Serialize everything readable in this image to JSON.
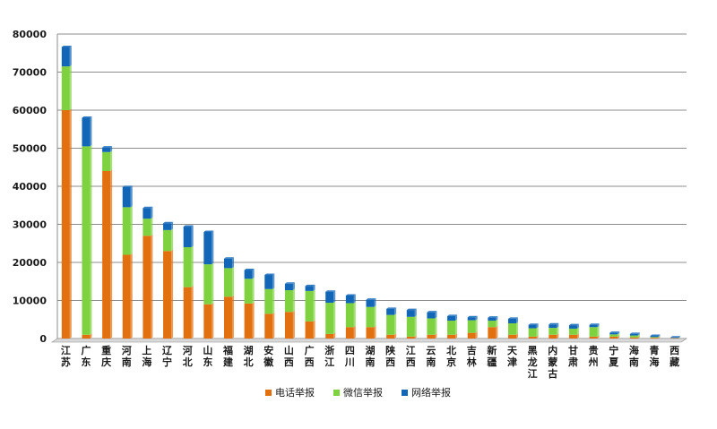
{
  "chart_data": {
    "type": "bar",
    "stacked": true,
    "title": "",
    "xlabel": "",
    "ylabel": "",
    "ylim": [
      0,
      80000
    ],
    "yticks": [
      0,
      10000,
      20000,
      30000,
      40000,
      50000,
      60000,
      70000,
      80000
    ],
    "grid": true,
    "legend_position": "bottom",
    "categories": [
      "江苏",
      "广东",
      "重庆",
      "河南",
      "上海",
      "辽宁",
      "河北",
      "山东",
      "福建",
      "湖北",
      "安徽",
      "山西",
      "广西",
      "浙江",
      "四川",
      "湖南",
      "陕西",
      "江西",
      "云南",
      "北京",
      "吉林",
      "新疆",
      "天津",
      "黑龙江",
      "内蒙古",
      "甘肃",
      "贵州",
      "宁夏",
      "海南",
      "青海",
      "西藏"
    ],
    "series": [
      {
        "name": "电话举报",
        "color": "#E3700F",
        "values": [
          60000,
          1000,
          44000,
          22000,
          27000,
          23000,
          13500,
          9000,
          11000,
          9200,
          6500,
          7000,
          4500,
          1200,
          3000,
          3000,
          1000,
          500,
          1000,
          1000,
          1500,
          3000,
          1000,
          500,
          1000,
          1000,
          500,
          500,
          300,
          200,
          100
        ]
      },
      {
        "name": "微信举报",
        "color": "#7FD23F",
        "values": [
          11500,
          49500,
          5000,
          12500,
          4500,
          5500,
          10500,
          10500,
          7500,
          6500,
          6500,
          5700,
          8000,
          8200,
          6300,
          5300,
          5200,
          5200,
          4300,
          3700,
          3300,
          1700,
          3000,
          2200,
          1800,
          1600,
          2500,
          600,
          500,
          200,
          50
        ]
      },
      {
        "name": "网络举报",
        "color": "#1266B8",
        "values": [
          5100,
          7500,
          1200,
          5300,
          2800,
          1800,
          5400,
          8500,
          2500,
          2300,
          3700,
          1700,
          1300,
          2900,
          2000,
          1900,
          1600,
          1800,
          1600,
          1200,
          800,
          800,
          1200,
          900,
          900,
          900,
          600,
          400,
          400,
          300,
          150
        ]
      }
    ]
  }
}
